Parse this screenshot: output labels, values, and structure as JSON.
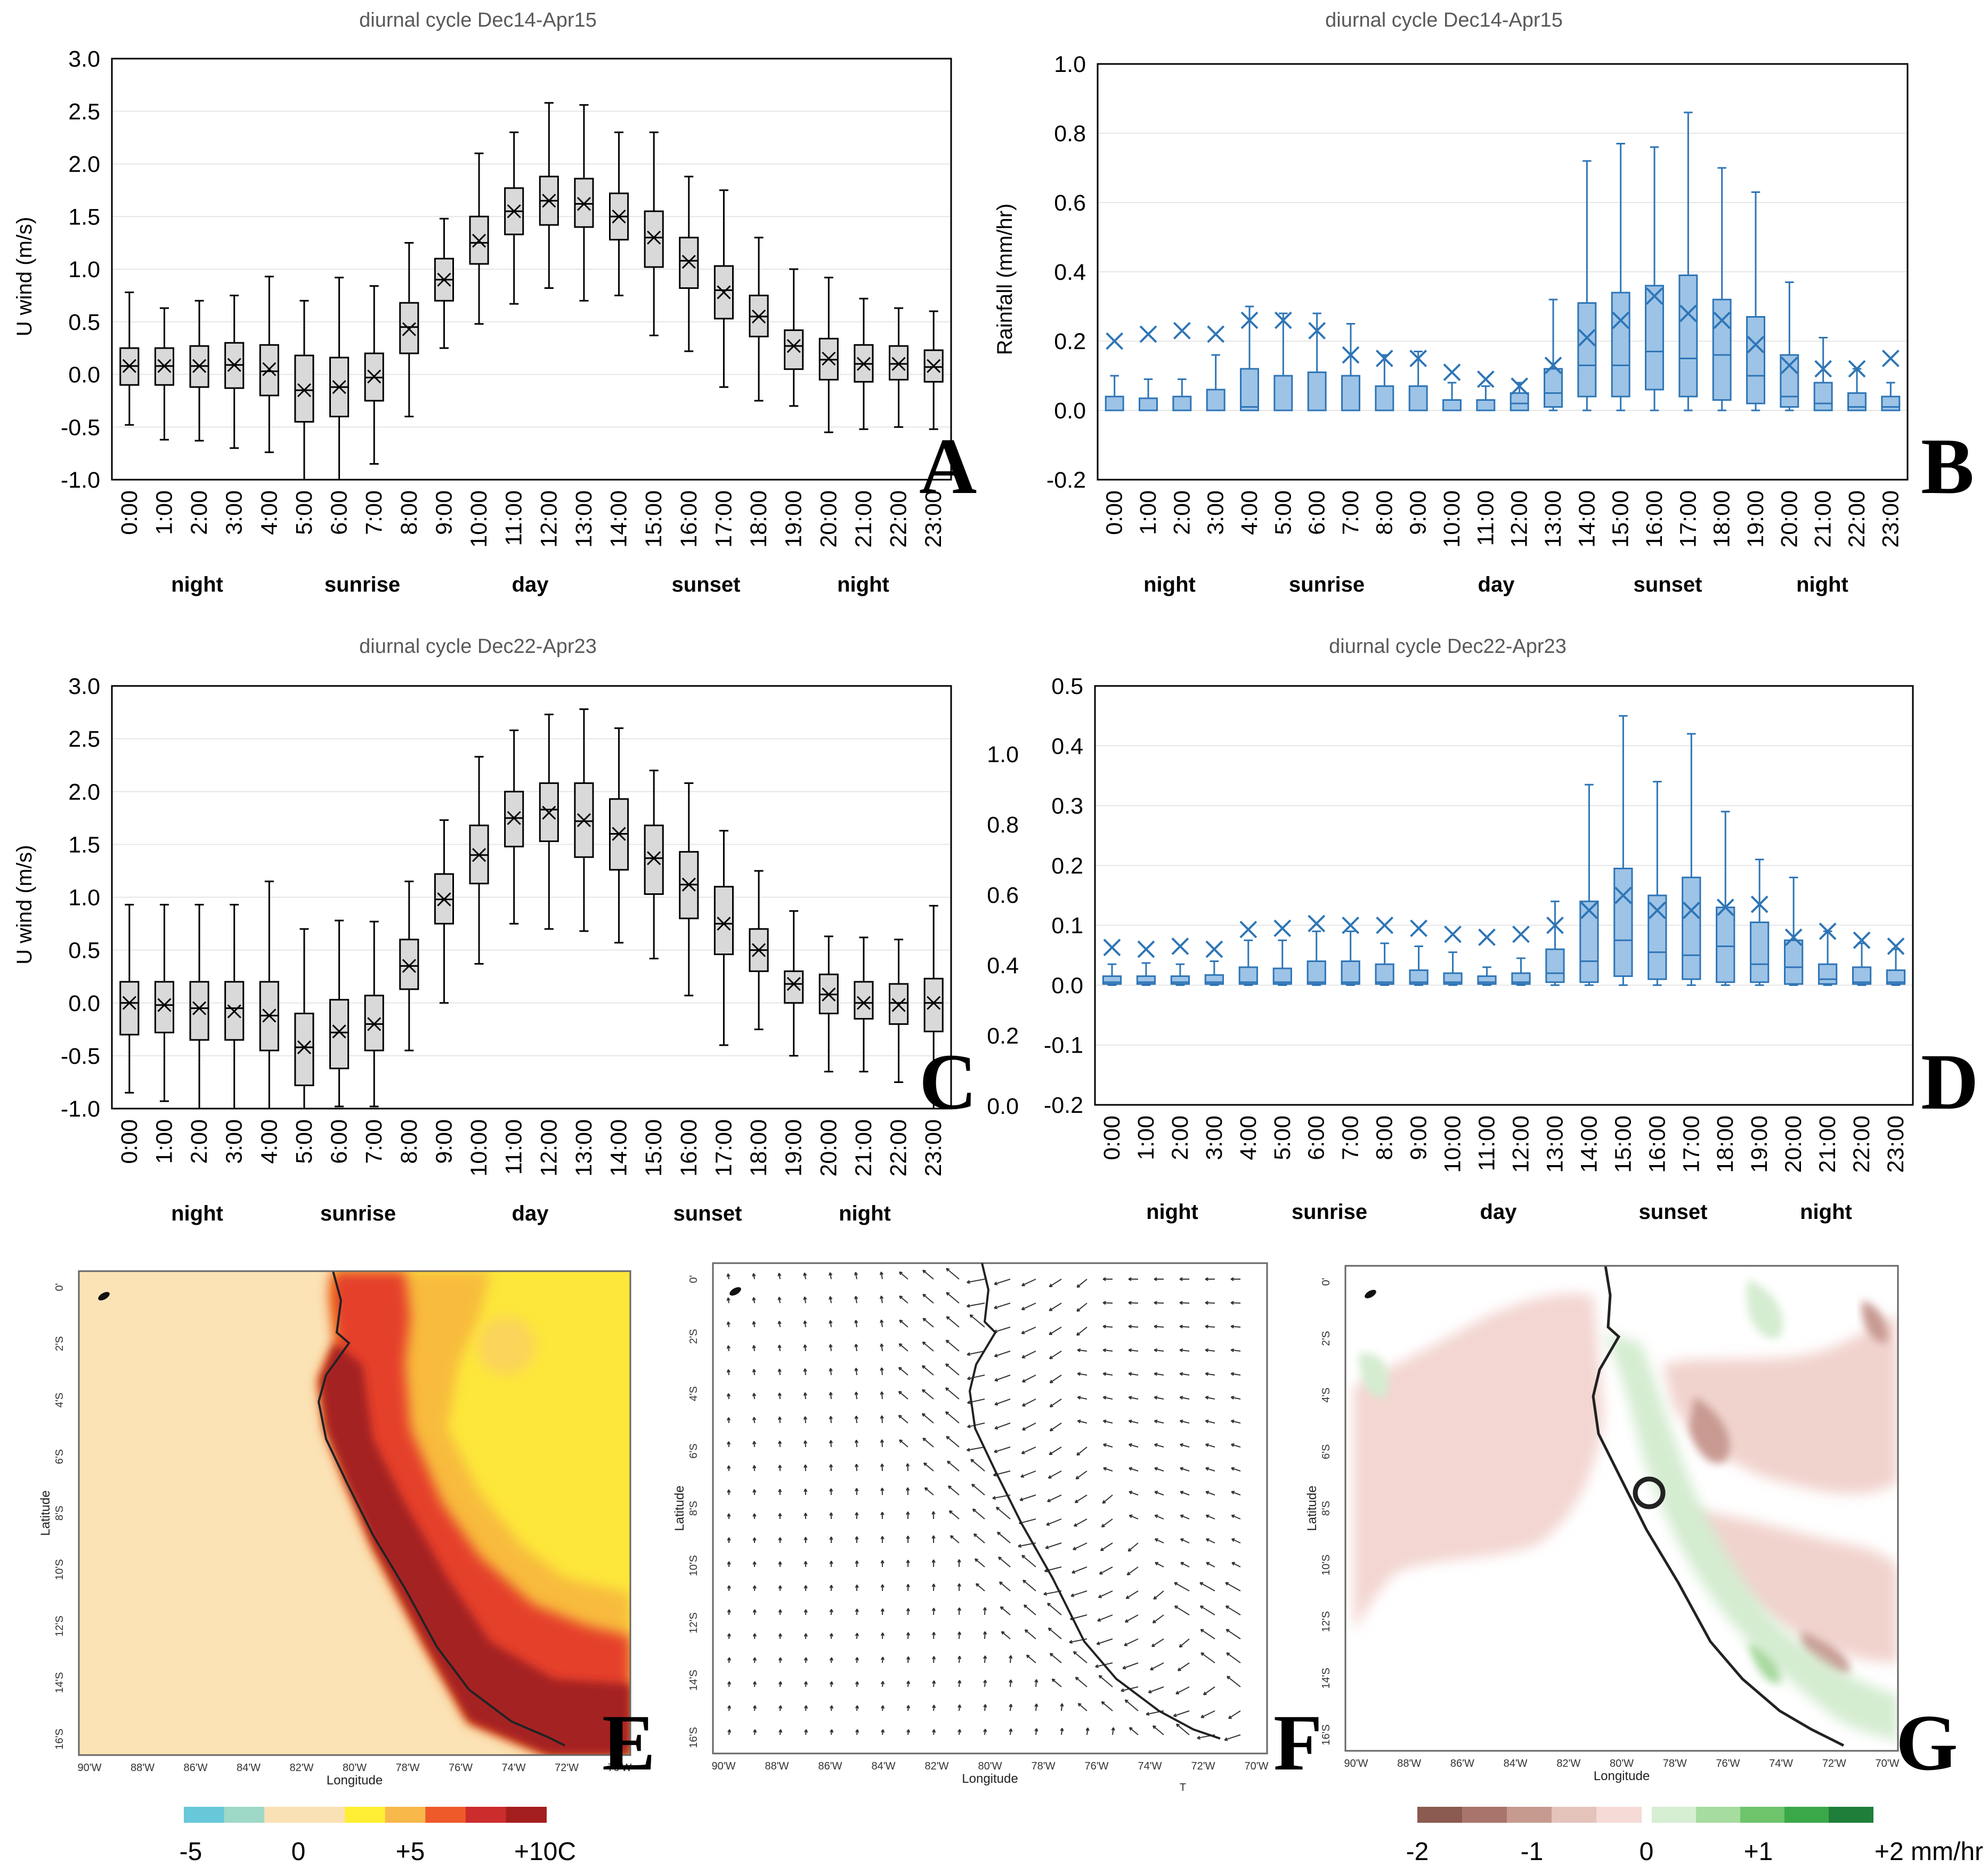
{
  "hours": [
    "0:00",
    "1:00",
    "2:00",
    "3:00",
    "4:00",
    "5:00",
    "6:00",
    "7:00",
    "8:00",
    "9:00",
    "10:00",
    "11:00",
    "12:00",
    "13:00",
    "14:00",
    "15:00",
    "16:00",
    "17:00",
    "18:00",
    "19:00",
    "20:00",
    "21:00",
    "22:00",
    "23:00"
  ],
  "colors": {
    "wind_box": "#d9d9d9",
    "wind_stroke": "#000000",
    "rain_box": "#9dc3e6",
    "rain_stroke": "#2e75b6",
    "grid": "#e6e6e6"
  },
  "chart_data": [
    {
      "panel": "A",
      "type": "box",
      "title": "diurnal cycle Dec14-Apr15",
      "xlabel": "",
      "ylabel": "U wind (m/s)",
      "ylim": [
        -1.0,
        3.0
      ],
      "yticks": [
        "-1.0",
        "-0.5",
        "0.0",
        "0.5",
        "1.0",
        "1.5",
        "2.0",
        "2.5",
        "3.0"
      ],
      "periods": [
        "night",
        "sunrise",
        "day",
        "sunset",
        "night"
      ],
      "boxes": [
        [
          -0.48,
          -0.1,
          0.08,
          0.25,
          0.78,
          0.08
        ],
        [
          -0.62,
          -0.1,
          0.08,
          0.25,
          0.63,
          0.08
        ],
        [
          -0.63,
          -0.12,
          0.08,
          0.27,
          0.7,
          0.08
        ],
        [
          -0.7,
          -0.13,
          0.09,
          0.3,
          0.75,
          0.09
        ],
        [
          -0.74,
          -0.2,
          0.03,
          0.28,
          0.93,
          0.05
        ],
        [
          -1.0,
          -0.45,
          -0.15,
          0.18,
          0.7,
          -0.15
        ],
        [
          -1.0,
          -0.4,
          -0.12,
          0.16,
          0.92,
          -0.12
        ],
        [
          -0.85,
          -0.25,
          -0.03,
          0.2,
          0.84,
          -0.02
        ],
        [
          -0.4,
          0.2,
          0.45,
          0.68,
          1.25,
          0.43
        ],
        [
          0.25,
          0.7,
          0.9,
          1.1,
          1.48,
          0.9
        ],
        [
          0.48,
          1.05,
          1.25,
          1.5,
          2.1,
          1.27
        ],
        [
          0.67,
          1.33,
          1.55,
          1.77,
          2.3,
          1.55
        ],
        [
          0.82,
          1.42,
          1.65,
          1.88,
          2.58,
          1.65
        ],
        [
          0.7,
          1.4,
          1.62,
          1.86,
          2.56,
          1.62
        ],
        [
          0.75,
          1.28,
          1.5,
          1.72,
          2.3,
          1.5
        ],
        [
          0.37,
          1.02,
          1.3,
          1.55,
          2.3,
          1.3
        ],
        [
          0.22,
          0.82,
          1.08,
          1.3,
          1.88,
          1.07
        ],
        [
          -0.12,
          0.53,
          0.8,
          1.03,
          1.75,
          0.78
        ],
        [
          -0.25,
          0.36,
          0.55,
          0.75,
          1.3,
          0.55
        ],
        [
          -0.3,
          0.05,
          0.27,
          0.42,
          1.0,
          0.27
        ],
        [
          -0.55,
          -0.05,
          0.14,
          0.34,
          0.92,
          0.15
        ],
        [
          -0.52,
          -0.07,
          0.1,
          0.28,
          0.72,
          0.1
        ],
        [
          -0.5,
          -0.05,
          0.1,
          0.27,
          0.63,
          0.1
        ],
        [
          -0.52,
          -0.07,
          0.07,
          0.23,
          0.6,
          0.08
        ]
      ],
      "letter": "A"
    },
    {
      "panel": "B",
      "type": "box",
      "title": "diurnal cycle Dec14-Apr15",
      "xlabel": "",
      "ylabel": "Rainfall (mm/hr)",
      "ylim": [
        -0.2,
        1.0
      ],
      "yticks": [
        "-0.2",
        "0.0",
        "0.2",
        "0.4",
        "0.6",
        "0.8",
        "1.0"
      ],
      "periods": [
        "night",
        "sunrise",
        "day",
        "sunset",
        "night"
      ],
      "boxes": [
        [
          0,
          0,
          0,
          0.04,
          0.1,
          0.2
        ],
        [
          0,
          0,
          0,
          0.035,
          0.09,
          0.22
        ],
        [
          0,
          0,
          0,
          0.04,
          0.09,
          0.23
        ],
        [
          0,
          0,
          0,
          0.06,
          0.16,
          0.22
        ],
        [
          0,
          0,
          0.01,
          0.12,
          0.3,
          0.26
        ],
        [
          0,
          0,
          0,
          0.1,
          0.28,
          0.26
        ],
        [
          0,
          0,
          0,
          0.11,
          0.28,
          0.23
        ],
        [
          0,
          0,
          0,
          0.1,
          0.25,
          0.16
        ],
        [
          0,
          0,
          0,
          0.07,
          0.16,
          0.15
        ],
        [
          0,
          0,
          0,
          0.07,
          0.17,
          0.15
        ],
        [
          0,
          0,
          0,
          0.03,
          0.08,
          0.11
        ],
        [
          0,
          0,
          0,
          0.03,
          0.07,
          0.09
        ],
        [
          0,
          0,
          0.02,
          0.05,
          0.08,
          0.07
        ],
        [
          0,
          0.01,
          0.05,
          0.12,
          0.32,
          0.13
        ],
        [
          0,
          0.04,
          0.13,
          0.31,
          0.72,
          0.21
        ],
        [
          0,
          0.04,
          0.13,
          0.34,
          0.77,
          0.26
        ],
        [
          0,
          0.06,
          0.17,
          0.36,
          0.76,
          0.33
        ],
        [
          0,
          0.04,
          0.15,
          0.39,
          0.86,
          0.28
        ],
        [
          0,
          0.03,
          0.16,
          0.32,
          0.7,
          0.26
        ],
        [
          0,
          0.02,
          0.1,
          0.27,
          0.63,
          0.19
        ],
        [
          0,
          0.01,
          0.04,
          0.16,
          0.37,
          0.13
        ],
        [
          0,
          0,
          0.02,
          0.08,
          0.21,
          0.12
        ],
        [
          0,
          0,
          0.01,
          0.05,
          0.12,
          0.12
        ],
        [
          0,
          0,
          0.01,
          0.04,
          0.08,
          0.15
        ]
      ],
      "letter": "B"
    },
    {
      "panel": "C",
      "type": "box",
      "title": "diurnal cycle Dec22-Apr23",
      "xlabel": "",
      "ylabel": "U wind (m/s)",
      "ylim": [
        -1.0,
        3.0
      ],
      "yticks": [
        "-1.0",
        "-0.5",
        "0.0",
        "0.5",
        "1.0",
        "1.5",
        "2.0",
        "2.5",
        "3.0"
      ],
      "periods": [
        "night",
        "sunrise",
        "day",
        "sunset",
        "night"
      ],
      "boxes": [
        [
          -0.85,
          -0.3,
          0.0,
          0.2,
          0.93,
          0.0
        ],
        [
          -0.93,
          -0.28,
          -0.02,
          0.2,
          0.93,
          -0.02
        ],
        [
          -1.0,
          -0.35,
          -0.05,
          0.2,
          0.93,
          -0.05
        ],
        [
          -1.0,
          -0.35,
          -0.05,
          0.2,
          0.93,
          -0.08
        ],
        [
          -1.0,
          -0.45,
          -0.12,
          0.2,
          1.15,
          -0.12
        ],
        [
          -1.0,
          -0.78,
          -0.42,
          -0.1,
          0.7,
          -0.42
        ],
        [
          -0.98,
          -0.62,
          -0.28,
          0.03,
          0.78,
          -0.27
        ],
        [
          -0.98,
          -0.45,
          -0.2,
          0.07,
          0.77,
          -0.2
        ],
        [
          -0.45,
          0.13,
          0.35,
          0.6,
          1.15,
          0.35
        ],
        [
          0.0,
          0.75,
          0.98,
          1.22,
          1.73,
          0.98
        ],
        [
          0.37,
          1.13,
          1.4,
          1.68,
          2.33,
          1.4
        ],
        [
          0.75,
          1.48,
          1.75,
          2.0,
          2.58,
          1.75
        ],
        [
          0.7,
          1.53,
          1.83,
          2.08,
          2.73,
          1.8
        ],
        [
          0.68,
          1.38,
          1.72,
          2.08,
          2.78,
          1.73
        ],
        [
          0.57,
          1.26,
          1.6,
          1.93,
          2.6,
          1.6
        ],
        [
          0.42,
          1.03,
          1.37,
          1.68,
          2.2,
          1.37
        ],
        [
          0.07,
          0.8,
          1.12,
          1.43,
          2.08,
          1.12
        ],
        [
          -0.4,
          0.46,
          0.75,
          1.1,
          1.63,
          0.75
        ],
        [
          -0.25,
          0.3,
          0.5,
          0.7,
          1.25,
          0.5
        ],
        [
          -0.5,
          0.0,
          0.18,
          0.3,
          0.87,
          0.18
        ],
        [
          -0.65,
          -0.1,
          0.08,
          0.27,
          0.63,
          0.08
        ],
        [
          -0.65,
          -0.15,
          0.0,
          0.2,
          0.62,
          0.0
        ],
        [
          -0.75,
          -0.2,
          0.0,
          0.18,
          0.6,
          -0.02
        ],
        [
          -1.0,
          -0.27,
          0.0,
          0.23,
          0.92,
          0.0
        ]
      ],
      "letter": "C"
    },
    {
      "panel": "D",
      "type": "box",
      "title": "diurnal cycle Dec22-Apr23",
      "xlabel": "",
      "ylabel": "",
      "ylim": [
        -0.2,
        0.5
      ],
      "yticks": [
        "-0.2",
        "-0.1",
        "0.0",
        "0.1",
        "0.2",
        "0.3",
        "0.4",
        "0.5"
      ],
      "yticks_outer": [
        "0.0",
        "0.2",
        "0.4",
        "0.6",
        "0.8",
        "1.0"
      ],
      "periods": [
        "night",
        "sunrise",
        "day",
        "sunset",
        "night"
      ],
      "boxes": [
        [
          0,
          0.002,
          0.005,
          0.015,
          0.035,
          0.063
        ],
        [
          0,
          0.002,
          0.005,
          0.015,
          0.037,
          0.06
        ],
        [
          0,
          0.002,
          0.005,
          0.015,
          0.035,
          0.065
        ],
        [
          0,
          0.002,
          0.005,
          0.017,
          0.04,
          0.06
        ],
        [
          0,
          0.002,
          0.005,
          0.03,
          0.075,
          0.093
        ],
        [
          0,
          0.002,
          0.005,
          0.028,
          0.075,
          0.095
        ],
        [
          0,
          0.002,
          0.005,
          0.04,
          0.09,
          0.103
        ],
        [
          0,
          0.002,
          0.005,
          0.04,
          0.09,
          0.1
        ],
        [
          0,
          0.002,
          0.005,
          0.035,
          0.07,
          0.1
        ],
        [
          0,
          0.002,
          0.005,
          0.025,
          0.065,
          0.095
        ],
        [
          0,
          0.002,
          0.005,
          0.02,
          0.055,
          0.085
        ],
        [
          0,
          0.002,
          0.005,
          0.015,
          0.03,
          0.08
        ],
        [
          0,
          0.002,
          0.005,
          0.02,
          0.045,
          0.085
        ],
        [
          0,
          0.005,
          0.02,
          0.06,
          0.14,
          0.1
        ],
        [
          0,
          0.005,
          0.04,
          0.14,
          0.335,
          0.125
        ],
        [
          0,
          0.015,
          0.075,
          0.195,
          0.45,
          0.15
        ],
        [
          0,
          0.01,
          0.055,
          0.15,
          0.34,
          0.125
        ],
        [
          0,
          0.01,
          0.05,
          0.18,
          0.42,
          0.125
        ],
        [
          0,
          0.005,
          0.065,
          0.13,
          0.29,
          0.13
        ],
        [
          0,
          0.005,
          0.035,
          0.105,
          0.21,
          0.135
        ],
        [
          0,
          0.002,
          0.03,
          0.075,
          0.18,
          0.08
        ],
        [
          0,
          0.002,
          0.01,
          0.035,
          0.09,
          0.09
        ],
        [
          0,
          0.002,
          0.005,
          0.03,
          0.07,
          0.075
        ],
        [
          0,
          0.002,
          0.005,
          0.025,
          0.06,
          0.065
        ]
      ],
      "letter": "D"
    }
  ],
  "maps": {
    "lat_ticks": [
      "0'",
      "2'S",
      "4'S",
      "6'S",
      "8'S",
      "10'S",
      "12'S",
      "14'S",
      "16'S"
    ],
    "lon_ticks": [
      "90'W",
      "88'W",
      "86'W",
      "84'W",
      "82'W",
      "80'W",
      "78'W",
      "76'W",
      "74'W",
      "72'W",
      "70'W"
    ],
    "xlabel": "Longitude",
    "ylabel": "Latitude",
    "letters": [
      "E",
      "F",
      "G"
    ],
    "f_tick": "T"
  },
  "colorbar_E": {
    "labels": [
      "-5",
      "0",
      "+5",
      "+10C"
    ],
    "colors": [
      "#67c8d9",
      "#9ed9c8",
      "#f9e1b5",
      "#f9e1b5",
      "#ffee33",
      "#f8b84a",
      "#ee5a2a",
      "#cc2c2c",
      "#a41e1e"
    ]
  },
  "colorbar_G": {
    "labels": [
      "-2",
      "-1",
      "0",
      "+1",
      "+2 mm/hr"
    ],
    "colors_neg": [
      "#8b5a50",
      "#a8746b",
      "#c79a90",
      "#e4c3bb",
      "#f5dad6"
    ],
    "colors_pos": [
      "#d6eed2",
      "#a6dca0",
      "#6dc46a",
      "#3aa848",
      "#1f7f3a"
    ]
  }
}
